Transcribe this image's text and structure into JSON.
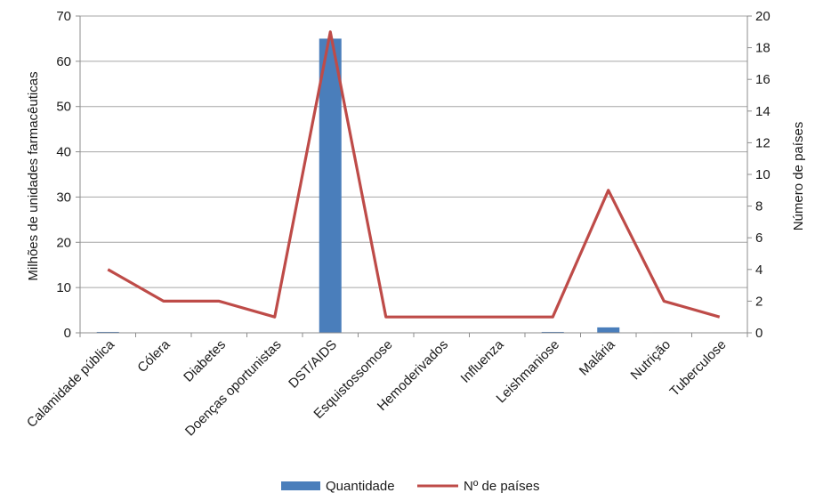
{
  "chart_data": {
    "type": "bar",
    "categories": [
      "Calamidade pública",
      "Cólera",
      "Diabetes",
      "Doenças oportunistas",
      "DST/AIDS",
      "Esquistossomose",
      "Hemoderivados",
      "Influenza",
      "Leishmaniose",
      "Malária",
      "Nutrição",
      "Tuberculose"
    ],
    "series": [
      {
        "name": "Quantidade",
        "type": "bar",
        "axis": "left",
        "color": "#4a7ebb",
        "values": [
          0.2,
          0.05,
          0.05,
          0.05,
          65,
          0.05,
          0.05,
          0.05,
          0.2,
          1.2,
          0.1,
          0.05
        ]
      },
      {
        "name": "Nº de países",
        "type": "line",
        "axis": "right",
        "color": "#be4b48",
        "values": [
          4,
          2,
          2,
          1,
          19,
          1,
          1,
          1,
          1,
          9,
          2,
          1
        ]
      }
    ],
    "ylabel": "Milhões de unidades farmacêuticas",
    "y2label": "Número de países",
    "ylim": [
      0,
      70
    ],
    "y2lim": [
      0,
      20
    ],
    "yticks": [
      "0",
      "10",
      "20",
      "30",
      "40",
      "50",
      "60",
      "70"
    ],
    "y2ticks": [
      "0",
      "2",
      "4",
      "6",
      "8",
      "10",
      "12",
      "14",
      "16",
      "18",
      "20"
    ],
    "grid": true,
    "legend_position": "bottom"
  }
}
